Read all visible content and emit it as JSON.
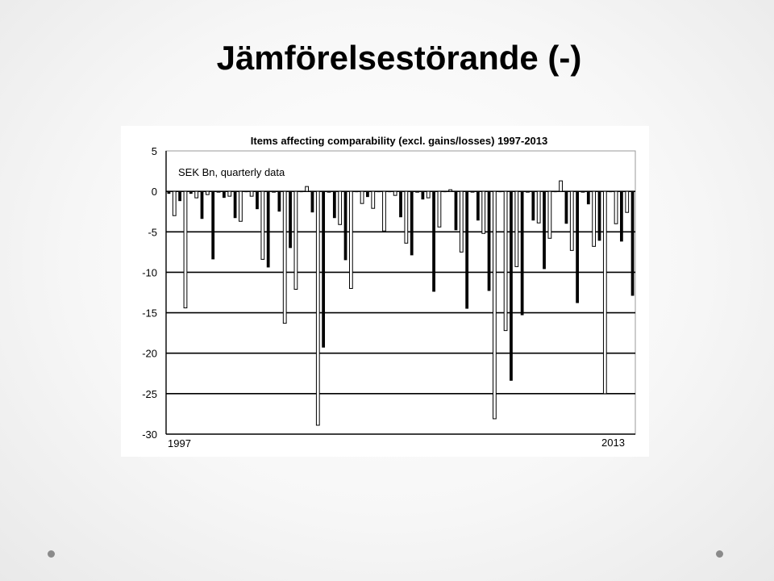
{
  "slide": {
    "title": "Jämförelsestörande (-)"
  },
  "chart_data": {
    "type": "bar",
    "title": "Items affecting comparability (excl. gains/losses) 1997-2013",
    "annotation": "SEK Bn, quarterly data",
    "xlabel": "",
    "ylabel": "",
    "x_start_label": "1997",
    "x_end_label": "2013",
    "ylim": [
      -30,
      5
    ],
    "yticks": [
      5,
      0,
      -5,
      -10,
      -15,
      -20,
      -25,
      -30
    ],
    "grid": true,
    "bar_style": "alternating black / white-outlined bars",
    "values": [
      -0.3,
      -3.0,
      -1.2,
      -14.4,
      -0.3,
      -0.8,
      -3.4,
      -0.4,
      -8.4,
      0.0,
      -0.8,
      -0.6,
      -3.3,
      -3.7,
      0.0,
      -0.6,
      -2.2,
      -8.4,
      -9.4,
      0.0,
      -2.5,
      -16.3,
      -7.0,
      -12.1,
      0.0,
      0.6,
      -2.6,
      -28.9,
      -19.3,
      0.0,
      -3.3,
      -4.1,
      -8.5,
      -12.0,
      0.0,
      -1.5,
      -0.7,
      -2.1,
      0.0,
      -4.9,
      0.0,
      -0.5,
      -3.2,
      -6.4,
      -7.9,
      0.0,
      -1.0,
      -0.8,
      -12.4,
      -4.4,
      0.0,
      0.2,
      -4.8,
      -7.5,
      -14.5,
      0.0,
      -3.6,
      -5.2,
      -12.3,
      -28.1,
      0.0,
      -17.2,
      -23.4,
      -9.3,
      -15.3,
      0.0,
      -3.6,
      -3.9,
      -9.6,
      -5.8,
      0.0,
      1.3,
      -4.0,
      -7.3,
      -13.8,
      0.0,
      -1.6,
      -6.8,
      -6.1,
      -25.0,
      0.0,
      -4.0,
      -6.2,
      -2.6,
      -12.9
    ]
  },
  "nav": {
    "prev_label": "",
    "next_label": ""
  }
}
